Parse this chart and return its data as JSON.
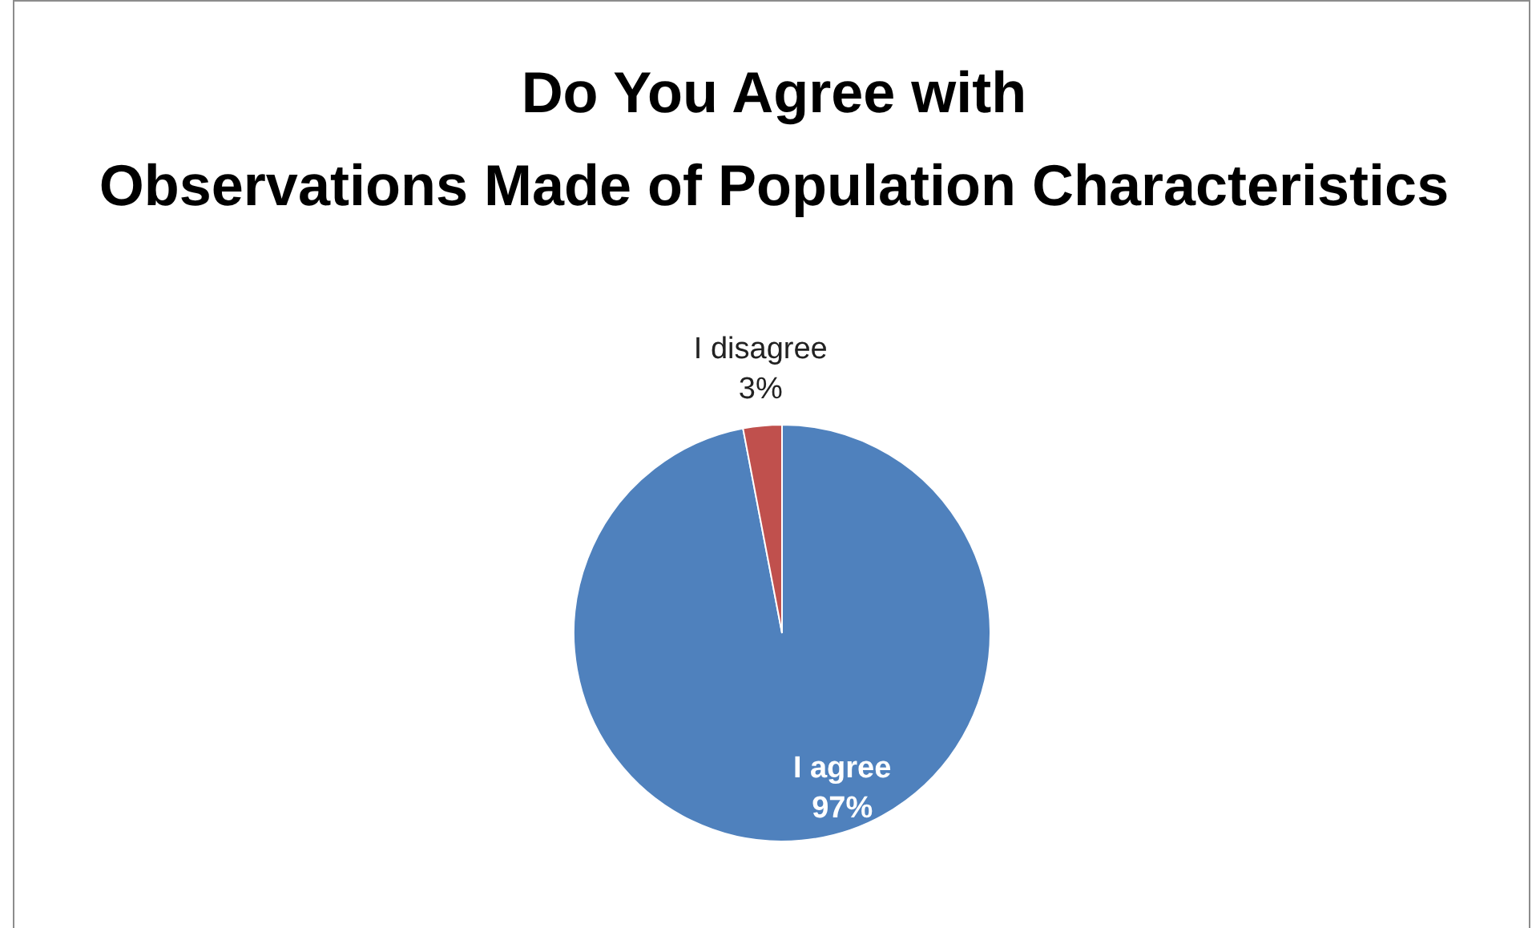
{
  "chart_data": {
    "type": "pie",
    "title": "Do You Agree with Observations Made of Population Characteristics",
    "categories": [
      "I agree",
      "I disagree"
    ],
    "values": [
      97,
      3
    ],
    "colors": [
      "#4f81bd",
      "#c0504d"
    ],
    "data_labels": true,
    "value_labels": [
      "97%",
      "3%"
    ]
  }
}
